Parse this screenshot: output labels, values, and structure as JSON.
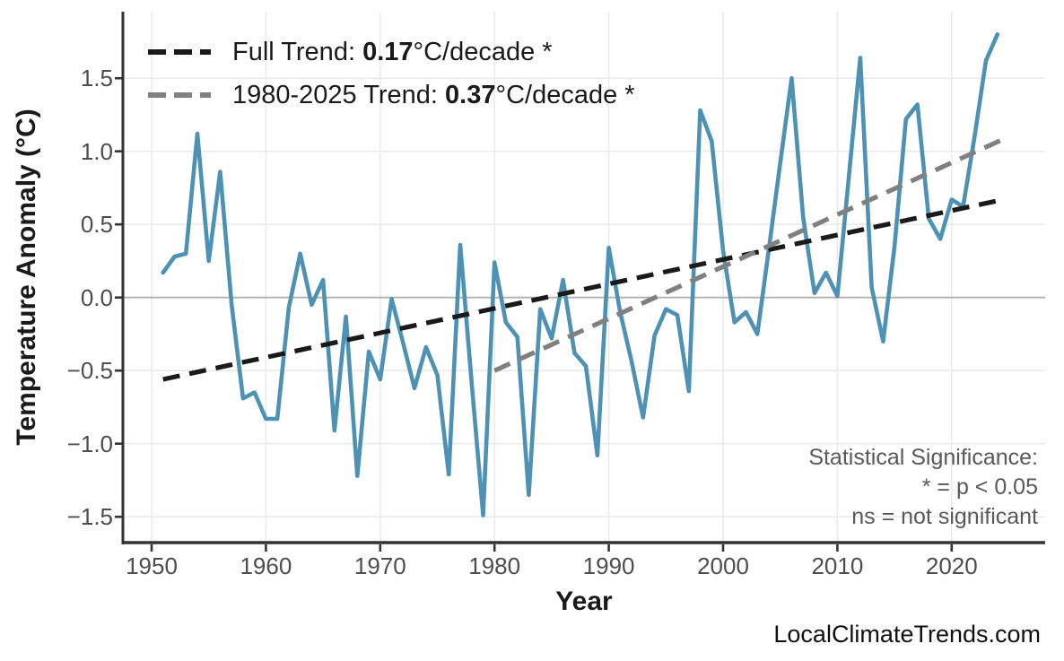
{
  "watermark": "LocalClimateTrends.com",
  "chart_data": {
    "type": "line",
    "title": "",
    "xlabel": "Year",
    "ylabel": "Temperature Anomaly (°C)",
    "x_ticks": [
      1950,
      1960,
      1970,
      1980,
      1990,
      2000,
      2010,
      2020
    ],
    "y_ticks": [
      1.5,
      1.0,
      0.5,
      0.0,
      -0.5,
      -1.0,
      -1.5
    ],
    "y_tick_labels": [
      "1.5",
      "1.0",
      "0.5",
      "0.0",
      "−0.5",
      "−1.0",
      "−1.5"
    ],
    "xlim": [
      1947.4,
      2028.2
    ],
    "ylim": [
      -1.68,
      1.96
    ],
    "grid": true,
    "zero_line": true,
    "legend_position": "top-left",
    "series": [
      {
        "name": "annual-temperature-anomaly",
        "style": "solid",
        "color": "#4d92b4",
        "x_start": 1951,
        "x_step": 1,
        "values": [
          0.17,
          0.28,
          0.3,
          1.12,
          0.25,
          0.86,
          -0.05,
          -0.69,
          -0.65,
          -0.83,
          -0.83,
          -0.07,
          0.3,
          -0.05,
          0.12,
          -0.91,
          -0.13,
          -1.22,
          -0.37,
          -0.56,
          -0.01,
          -0.31,
          -0.62,
          -0.34,
          -0.53,
          -1.21,
          0.36,
          -0.58,
          -1.49,
          0.24,
          -0.17,
          -0.27,
          -1.35,
          -0.08,
          -0.28,
          0.12,
          -0.38,
          -0.47,
          -1.08,
          0.34,
          -0.1,
          -0.44,
          -0.82,
          -0.26,
          -0.08,
          -0.12,
          -0.64,
          1.28,
          1.07,
          0.32,
          -0.17,
          -0.1,
          -0.25,
          0.33,
          0.92,
          1.5,
          0.55,
          0.03,
          0.17,
          0.01,
          0.82,
          1.64,
          0.07,
          -0.3,
          0.35,
          1.22,
          1.32,
          0.54,
          0.4,
          0.67,
          0.62,
          1.1,
          1.62,
          1.8
        ]
      },
      {
        "name": "full-trend",
        "style": "dashed",
        "color": "#1a1a1a",
        "x": [
          1951,
          2024.5
        ],
        "values": [
          -0.56,
          0.67
        ],
        "rate_c_per_decade": 0.17,
        "significant": true
      },
      {
        "name": "trend-1980-2025",
        "style": "dashed",
        "color": "#808080",
        "x": [
          1980,
          2025
        ],
        "values": [
          -0.5,
          1.1
        ],
        "rate_c_per_decade": 0.37,
        "significant": true
      }
    ],
    "legend": [
      {
        "prefix": "Full Trend: ",
        "value": "0.17",
        "suffix": "°C/decade *",
        "color": "#1a1a1a"
      },
      {
        "prefix": "1980-2025 Trend: ",
        "value": "0.37",
        "suffix": "°C/decade *",
        "color": "#808080"
      }
    ],
    "annotation": {
      "lines": [
        "Statistical Significance:",
        "* = p < 0.05",
        "ns = not significant"
      ]
    },
    "colors": {
      "line": "#4d92b4",
      "trend_full": "#1a1a1a",
      "trend_recent": "#808080",
      "grid": "#ebebeb",
      "zero_line": "#b0b0b0",
      "axis": "#333333",
      "tick_label": "#4d4d4d",
      "annotation_text": "#595959"
    }
  }
}
